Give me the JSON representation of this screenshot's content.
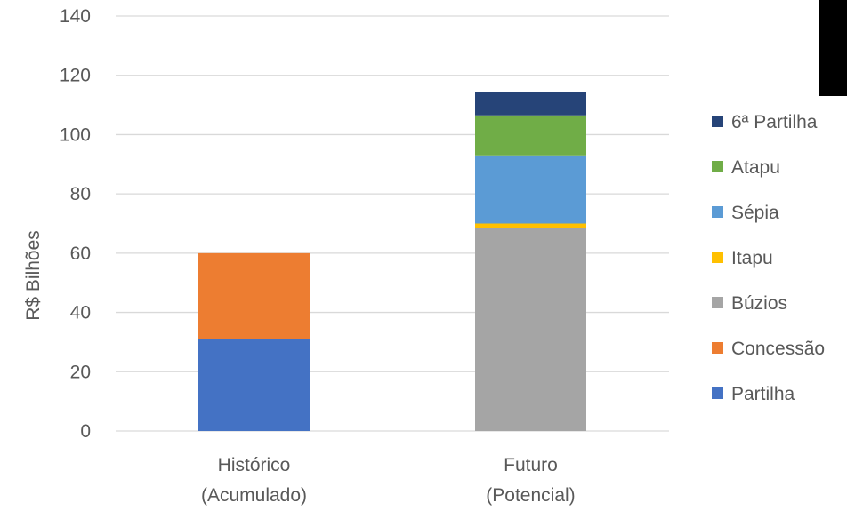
{
  "chart_data": {
    "type": "bar",
    "stacked": true,
    "title": "",
    "xlabel": "",
    "ylabel": "R$ Bilhões",
    "ylim": [
      0,
      140
    ],
    "yticks": [
      0,
      20,
      40,
      60,
      80,
      100,
      120,
      140
    ],
    "grid": true,
    "legend_position": "right",
    "categories": [
      [
        "Histórico",
        "(Acumulado)"
      ],
      [
        "Futuro",
        "(Potencial)"
      ]
    ],
    "series": [
      {
        "name": "Partilha",
        "color": "#4472C4",
        "values": [
          31,
          0
        ]
      },
      {
        "name": "Concessão",
        "color": "#ED7D31",
        "values": [
          29,
          0
        ]
      },
      {
        "name": "Búzios",
        "color": "#A5A5A5",
        "values": [
          0,
          68.5
        ]
      },
      {
        "name": "Itapu",
        "color": "#FFC000",
        "values": [
          0,
          1.5
        ]
      },
      {
        "name": "Sépia",
        "color": "#5B9BD5",
        "values": [
          0,
          23
        ]
      },
      {
        "name": "Atapu",
        "color": "#70AD47",
        "values": [
          0,
          13.5
        ]
      },
      {
        "name": "6ª Partilha",
        "color": "#264478",
        "values": [
          0,
          8
        ]
      }
    ]
  }
}
